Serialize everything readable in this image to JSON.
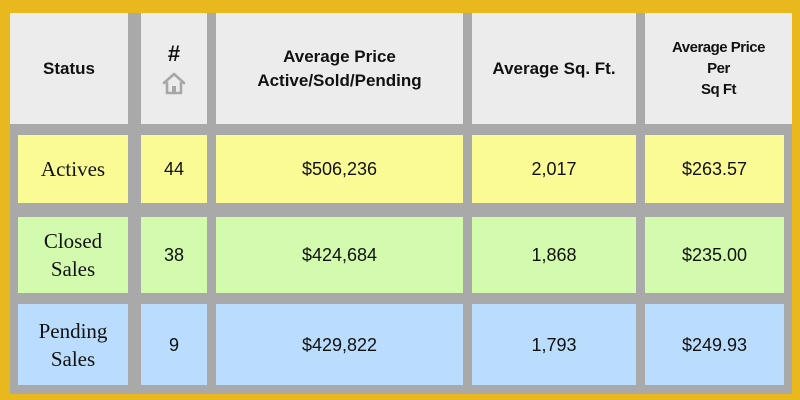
{
  "header": {
    "status": "Status",
    "count_symbol": "#",
    "count_icon": "house-icon",
    "avg_price_line1": "Average Price",
    "avg_price_line2": "Active/Sold/Pending",
    "avg_sqft": "Average Sq. Ft.",
    "price_per_sqft_line1": "Average Price",
    "price_per_sqft_line2": "Per",
    "price_per_sqft_line3": "Sq Ft"
  },
  "rows": [
    {
      "status_line1": "Actives",
      "status_line2": "",
      "count": "44",
      "avg_price": "$506,236",
      "avg_sqft": "2,017",
      "price_per_sqft": "$263.57",
      "color": "#fbfb96"
    },
    {
      "status_line1": "Closed",
      "status_line2": "Sales",
      "count": "38",
      "avg_price": "$424,684",
      "avg_sqft": "1,868",
      "price_per_sqft": "$235.00",
      "color": "#d3fbad"
    },
    {
      "status_line1": "Pending",
      "status_line2": "Sales",
      "count": "9",
      "avg_price": "$429,822",
      "avg_sqft": "1,793",
      "price_per_sqft": "$249.93",
      "color": "#badcfd"
    }
  ],
  "colors": {
    "border_frame": "#e8b81c",
    "grid_lines": "#a9a9a9",
    "header_bg": "#ececec"
  }
}
